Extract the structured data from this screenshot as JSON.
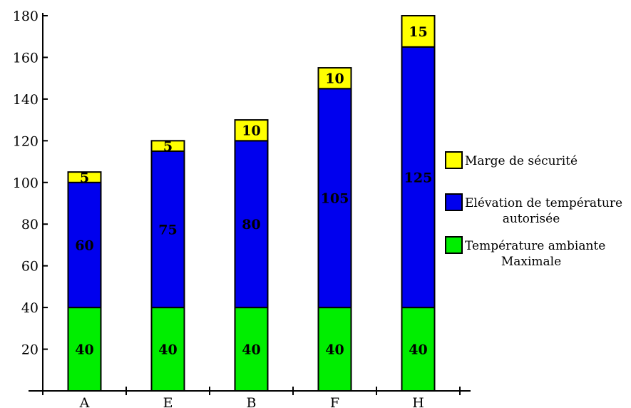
{
  "chart_data": {
    "type": "bar",
    "stacked": true,
    "categories": [
      "A",
      "E",
      "B",
      "F",
      "H"
    ],
    "series": [
      {
        "name": "Température ambiante Maximale",
        "legend_lines": [
          "Température ambiante",
          "Maximale"
        ],
        "color": "#00ee00",
        "values": [
          40,
          40,
          40,
          40,
          40
        ]
      },
      {
        "name": "Elévation de température autorisée",
        "legend_lines": [
          "Elévation de température",
          "autorisée"
        ],
        "color": "#0000ee",
        "values": [
          60,
          75,
          80,
          105,
          125
        ]
      },
      {
        "name": "Marge de sécurité",
        "legend_lines": [
          "Marge de sécurité"
        ],
        "color": "#ffff00",
        "values": [
          5,
          5,
          10,
          10,
          15
        ]
      }
    ],
    "yticks": [
      20,
      40,
      60,
      80,
      100,
      120,
      140,
      160,
      180
    ],
    "ylim": [
      0,
      180
    ],
    "title": "",
    "xlabel": "",
    "ylabel": "",
    "grid": false,
    "legend_position": "right"
  }
}
